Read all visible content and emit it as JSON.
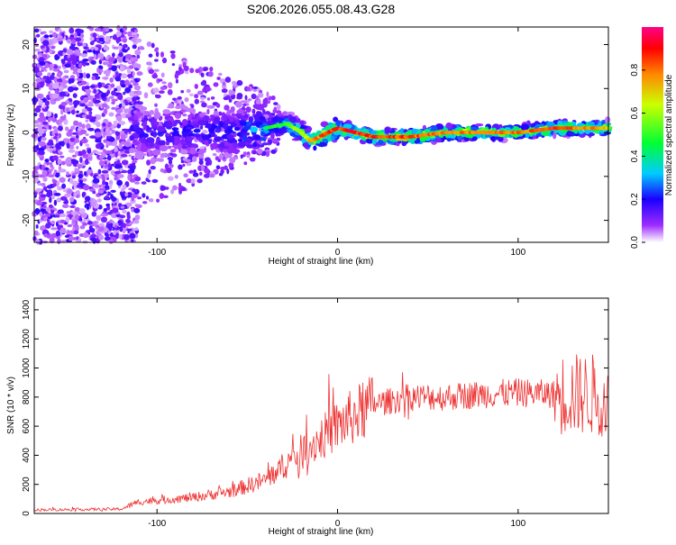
{
  "title": "S206.2026.055.08.43.G28",
  "chart_data": [
    {
      "type": "heatmap",
      "xlabel": "Height of straight line (km)",
      "ylabel": "Frequency (Hz)",
      "xlim": [
        -168,
        150
      ],
      "ylim": [
        -25,
        24
      ],
      "x_ticks": [
        "-100",
        "0",
        "100"
      ],
      "y_ticks": [
        "-20",
        "-10",
        "0",
        "10",
        "20"
      ],
      "colorbar": {
        "label": "Normalized spectral amplitude",
        "range": [
          0,
          1
        ],
        "ticks": [
          "0.0",
          "0.2",
          "0.4",
          "0.6",
          "0.8"
        ]
      },
      "ridge": {
        "x": [
          -115,
          -60,
          -40,
          -28,
          -20,
          -15,
          -10,
          -5,
          0,
          10,
          20,
          40,
          60,
          80,
          100,
          120,
          150
        ],
        "freq": [
          0,
          0,
          1,
          2,
          0,
          -2,
          -1,
          0,
          1,
          0,
          -1,
          -1,
          0,
          0,
          0,
          1,
          1
        ],
        "amplitude": [
          0.25,
          0.3,
          0.45,
          0.55,
          0.65,
          0.8,
          0.85,
          0.9,
          0.95,
          0.95,
          0.95,
          0.9,
          0.85,
          0.85,
          0.85,
          0.9,
          0.8
        ]
      }
    },
    {
      "type": "line",
      "xlabel": "Height of straight line (km)",
      "ylabel": "SNR (10 * v/v)",
      "xlim": [
        -168,
        150
      ],
      "ylim": [
        0,
        1480
      ],
      "x_ticks": [
        "-100",
        "0",
        "100"
      ],
      "y_ticks": [
        "0",
        "200",
        "400",
        "600",
        "800",
        "1000",
        "1200",
        "1400"
      ],
      "color": "#ee3333",
      "trend": {
        "x": [
          -168,
          -120,
          -110,
          -80,
          -60,
          -40,
          -20,
          0,
          20,
          40,
          60,
          80,
          100,
          120,
          140,
          150
        ],
        "y": [
          25,
          30,
          80,
          110,
          150,
          230,
          420,
          600,
          750,
          800,
          800,
          820,
          830,
          820,
          820,
          800
        ]
      }
    }
  ]
}
